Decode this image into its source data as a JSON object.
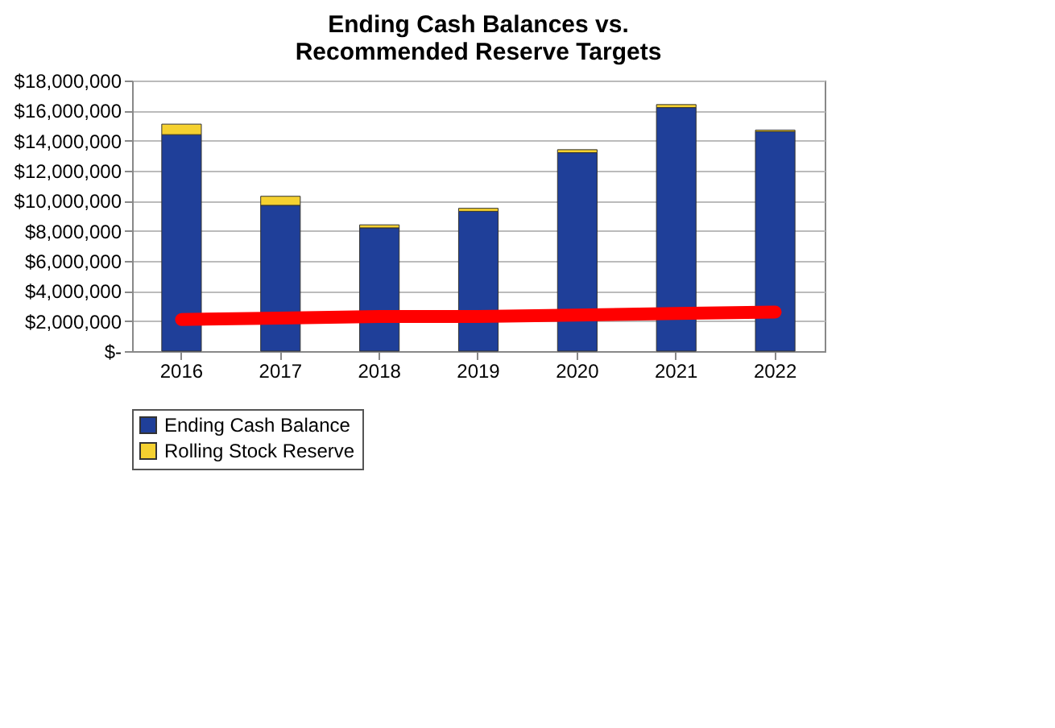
{
  "chart_data": {
    "type": "bar",
    "title": [
      "Ending Cash Balances vs.",
      "Recommended Reserve Targets"
    ],
    "stacked": true,
    "categories": [
      "2016",
      "2017",
      "2018",
      "2019",
      "2020",
      "2021",
      "2022"
    ],
    "series": [
      {
        "name": "Ending Cash Balance",
        "color": "#1f3f99",
        "values": [
          14400000,
          9700000,
          8200000,
          9300000,
          13200000,
          16200000,
          14600000
        ]
      },
      {
        "name": "Rolling Stock Reserve",
        "color": "#f5d130",
        "values": [
          700000,
          600000,
          200000,
          200000,
          200000,
          200000,
          100000
        ]
      },
      {
        "type": "line",
        "color": "#ff0000",
        "values": [
          2100000,
          2200000,
          2300000,
          2300000,
          2400000,
          2500000,
          2600000
        ]
      }
    ],
    "ylim": [
      0,
      18000000
    ],
    "yticks": [
      {
        "value": 0,
        "label": "$-"
      },
      {
        "value": 2000000,
        "label": "$2,000,000"
      },
      {
        "value": 4000000,
        "label": "$4,000,000"
      },
      {
        "value": 6000000,
        "label": "$6,000,000"
      },
      {
        "value": 8000000,
        "label": "$8,000,000"
      },
      {
        "value": 10000000,
        "label": "$10,000,000"
      },
      {
        "value": 12000000,
        "label": "$12,000,000"
      },
      {
        "value": 14000000,
        "label": "$14,000,000"
      },
      {
        "value": 16000000,
        "label": "$16,000,000"
      },
      {
        "value": 18000000,
        "label": "$18,000,000"
      }
    ],
    "grid": "y",
    "legend": "bottom"
  }
}
